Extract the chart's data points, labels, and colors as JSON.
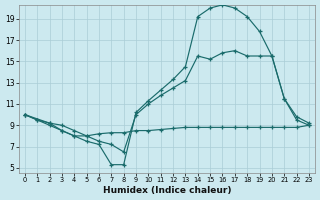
{
  "xlabel": "Humidex (Indice chaleur)",
  "bg_color": "#cce9ef",
  "grid_color": "#b8d8e0",
  "line_color": "#1a6b6b",
  "xlim_min": -0.5,
  "xlim_max": 23.5,
  "ylim_min": 4.5,
  "ylim_max": 20.3,
  "yticks": [
    5,
    7,
    9,
    11,
    13,
    15,
    17,
    19
  ],
  "xticks": [
    0,
    1,
    2,
    3,
    4,
    5,
    6,
    7,
    8,
    9,
    10,
    11,
    12,
    13,
    14,
    15,
    16,
    17,
    18,
    19,
    20,
    21,
    22,
    23
  ],
  "line_top_x": [
    0,
    1,
    2,
    3,
    4,
    5,
    6,
    7,
    8,
    9,
    10,
    11,
    12,
    13,
    14,
    15,
    16,
    17,
    18,
    19,
    20,
    21,
    22,
    23
  ],
  "line_top_y": [
    10,
    9.5,
    9.0,
    8.5,
    8.0,
    7.5,
    7.2,
    5.3,
    5.3,
    10.2,
    11.3,
    12.3,
    13.3,
    14.5,
    19.2,
    20.0,
    20.3,
    20.0,
    19.2,
    17.8,
    15.5,
    11.5,
    9.5,
    9.0
  ],
  "line_mid_x": [
    0,
    1,
    2,
    3,
    4,
    5,
    6,
    7,
    8,
    9,
    10,
    11,
    12,
    13,
    14,
    15,
    16,
    17,
    18,
    19,
    20,
    21,
    22,
    23
  ],
  "line_mid_y": [
    10,
    9.5,
    9.2,
    9.0,
    8.5,
    8.0,
    7.5,
    7.2,
    6.5,
    10.0,
    11.0,
    11.8,
    12.5,
    13.2,
    15.5,
    15.2,
    15.8,
    16.0,
    15.5,
    15.5,
    15.5,
    11.5,
    9.8,
    9.2
  ],
  "line_bot_x": [
    0,
    2,
    3,
    4,
    5,
    6,
    7,
    8,
    9,
    10,
    11,
    12,
    13,
    14,
    15,
    16,
    17,
    18,
    19,
    20,
    21,
    22,
    23
  ],
  "line_bot_y": [
    10,
    9.2,
    8.5,
    8.0,
    8.0,
    8.2,
    8.3,
    8.3,
    8.5,
    8.5,
    8.6,
    8.7,
    8.8,
    8.8,
    8.8,
    8.8,
    8.8,
    8.8,
    8.8,
    8.8,
    8.8,
    8.8,
    9.0
  ]
}
